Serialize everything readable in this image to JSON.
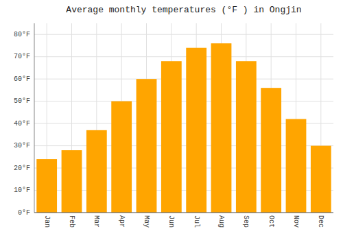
{
  "chart_data": {
    "type": "bar",
    "title": "Average monthly temperatures (°F ) in Ongjin",
    "categories": [
      "Jan",
      "Feb",
      "Mar",
      "Apr",
      "May",
      "Jun",
      "Jul",
      "Aug",
      "Sep",
      "Oct",
      "Nov",
      "Dec"
    ],
    "values": [
      24,
      28,
      37,
      50,
      60,
      68,
      74,
      76,
      68,
      56,
      42,
      30
    ],
    "color": "#FFA500",
    "ylim": [
      0,
      85
    ],
    "yticks": [
      {
        "value": 0,
        "label": "0°F"
      },
      {
        "value": 10,
        "label": "10°F"
      },
      {
        "value": 20,
        "label": "20°F"
      },
      {
        "value": 30,
        "label": "30°F"
      },
      {
        "value": 40,
        "label": "40°F"
      },
      {
        "value": 50,
        "label": "50°F"
      },
      {
        "value": 60,
        "label": "60°F"
      },
      {
        "value": 70,
        "label": "70°F"
      },
      {
        "value": 80,
        "label": "80°F"
      }
    ],
    "grid": true
  }
}
